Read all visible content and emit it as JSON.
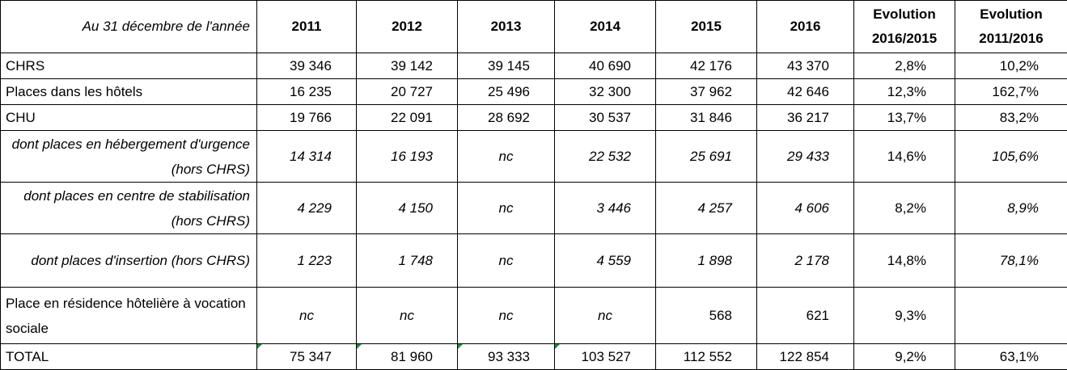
{
  "header": {
    "corner": "Au 31  décembre de l'année",
    "columns": [
      "2011",
      "2012",
      "2013",
      "2014",
      "2015",
      "2016",
      "Evolution 2016/2015",
      "Evolution 2011/2016"
    ]
  },
  "table": {
    "rows": [
      {
        "label": "CHRS",
        "cells": [
          "39 346",
          "39 142",
          "39 145",
          "40 690",
          "42 176",
          "43 370",
          "2,8%",
          "10,2%"
        ]
      },
      {
        "label": "Places dans les hôtels",
        "cells": [
          "16 235",
          "20 727",
          "25 496",
          "32 300",
          "37 962",
          "42 646",
          "12,3%",
          "162,7%"
        ]
      },
      {
        "label": "CHU",
        "cells": [
          "19 766",
          "22 091",
          "28 692",
          "30 537",
          "31 846",
          "36 217",
          "13,7%",
          "83,2%"
        ]
      },
      {
        "label": "dont places en hébergement d'urgence (hors CHRS)",
        "cells": [
          "14 314",
          "16 193",
          "nc",
          "22 532",
          "25 691",
          "29 433",
          "14,6%",
          "105,6%"
        ]
      },
      {
        "label": "dont places en centre de stabilisation (hors CHRS)",
        "cells": [
          "4 229",
          "4 150",
          "nc",
          "3 446",
          "4 257",
          "4 606",
          "8,2%",
          "8,9%"
        ]
      },
      {
        "label": "dont places d'insertion (hors CHRS)",
        "cells": [
          "1 223",
          "1 748",
          "nc",
          "4 559",
          "1 898",
          "2 178",
          "14,8%",
          "78,1%"
        ]
      },
      {
        "label": "Place en résidence hôtelière à vocation sociale",
        "cells": [
          "nc",
          "nc",
          "nc",
          "nc",
          "568",
          "621",
          "9,3%",
          null
        ]
      },
      {
        "label": "TOTAL",
        "cells": [
          "75 347",
          "81 960",
          "93 333",
          "103 527",
          "112 552",
          "122 854",
          "9,2%",
          "63,1%"
        ]
      }
    ]
  }
}
